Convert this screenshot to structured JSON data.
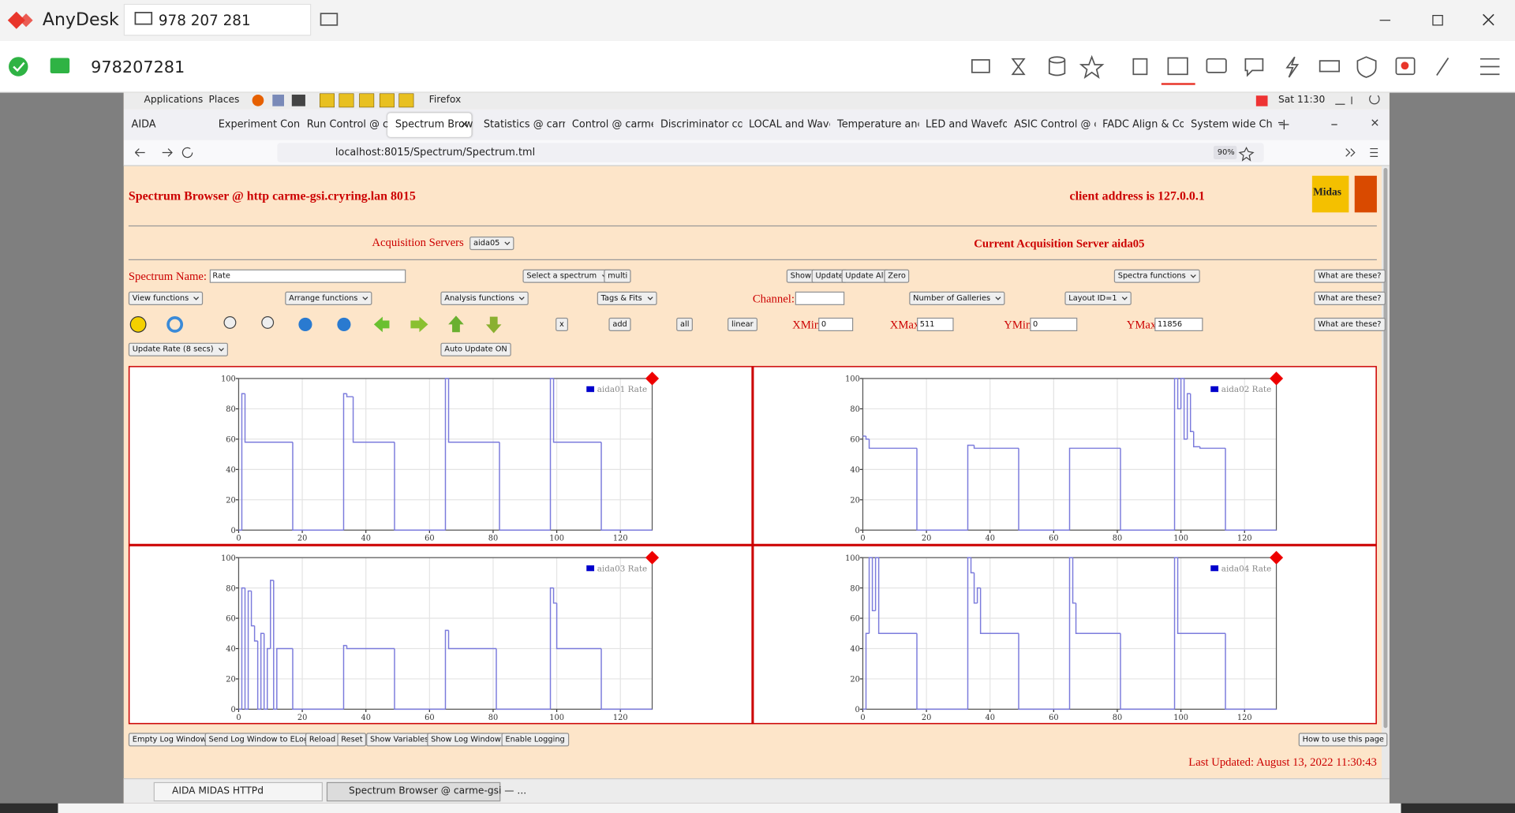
{
  "anydesk": {
    "app_name": "AnyDesk",
    "tab_id": "978 207 281",
    "address": "978207281"
  },
  "desktop_panel": {
    "menus": [
      "Applications",
      "Places"
    ],
    "app": "Firefox",
    "clock": "Sat 11:30"
  },
  "browser": {
    "tabs": [
      "AIDA",
      "Experiment Cont",
      "Run Control @ ca",
      "Spectrum Brow",
      "Statistics @ carm",
      "Control @ carme",
      "Discriminator co",
      "LOCAL and Wave",
      "Temperature and",
      "LED and Wavefor",
      "ASIC Control @ c",
      "FADC Align & Co",
      "System wide Che"
    ],
    "url": "localhost:8015/Spectrum/Spectrum.tml",
    "zoom": "90%"
  },
  "page": {
    "title": "Spectrum Browser @ http carme-gsi.cryring.lan 8015",
    "client": "client address is 127.0.0.1",
    "logo": "Midas",
    "acq_label": "Acquisition Servers",
    "acq_select": "aida05",
    "acq_current": "Current Acquisition Server aida05",
    "spectrum_label": "Spectrum Name:",
    "spectrum_name": "Rate",
    "select_spectrum": "Select a spectrum",
    "multi": "multi",
    "row1_buttons": [
      "Show",
      "Update",
      "Update All",
      "Zero"
    ],
    "spectra_functions": "Spectra functions",
    "help": "What are these?",
    "row2_selects": [
      "View functions",
      "Arrange functions",
      "Analysis functions",
      "Tags & Fits"
    ],
    "channel_label": "Channel:",
    "galleries": "Number of Galleries",
    "layout": "Layout ID=1",
    "row3_buttons": [
      "x",
      "add",
      "all",
      "linear"
    ],
    "limits": [
      {
        "label": "XMin",
        "value": "0"
      },
      {
        "label": "XMax",
        "value": "511"
      },
      {
        "label": "YMin",
        "value": "0"
      },
      {
        "label": "YMax",
        "value": "11856"
      }
    ],
    "update_rate": "Update Rate (8 secs)",
    "auto_update": "Auto Update ON",
    "bottom_buttons": [
      "Empty Log Window",
      "Send Log Window to ELog",
      "Reload",
      "Reset",
      "Show Variables",
      "Show Log Window",
      "Enable Logging"
    ],
    "how_to": "How to use this page",
    "last_updated": "Last Updated: August 13, 2022 11:30:43"
  },
  "plots": [
    {
      "legend": "aida01 Rate",
      "color": "#7b7bdc",
      "legend_color": "#0000cc",
      "xlim": [
        0,
        130
      ],
      "ylim": [
        0,
        100
      ],
      "xticks": [
        0,
        20,
        40,
        60,
        80,
        100,
        120
      ],
      "yticks": [
        0,
        20,
        40,
        60,
        80,
        100
      ],
      "x": [
        0,
        1,
        2,
        17,
        33,
        34,
        36,
        49,
        65,
        66,
        82,
        98,
        99,
        114,
        130
      ],
      "values": [
        0,
        90,
        58,
        0,
        90,
        88,
        58,
        0,
        100,
        58,
        0,
        100,
        58,
        0,
        0
      ]
    },
    {
      "legend": "aida02 Rate",
      "color": "#7b7bdc",
      "legend_color": "#0000cc",
      "xlim": [
        0,
        130
      ],
      "ylim": [
        0,
        100
      ],
      "xticks": [
        0,
        20,
        40,
        60,
        80,
        100,
        120
      ],
      "yticks": [
        0,
        20,
        40,
        60,
        80,
        100
      ],
      "x": [
        0,
        1,
        2,
        17,
        33,
        35,
        49,
        65,
        81,
        98,
        99,
        100,
        101,
        102,
        103,
        104,
        106,
        114,
        130
      ],
      "values": [
        62,
        60,
        54,
        0,
        56,
        54,
        0,
        54,
        0,
        100,
        80,
        100,
        60,
        90,
        65,
        55,
        54,
        0,
        0
      ]
    },
    {
      "legend": "aida03 Rate",
      "color": "#7b7bdc",
      "legend_color": "#0000cc",
      "xlim": [
        0,
        130
      ],
      "ylim": [
        0,
        100
      ],
      "xticks": [
        0,
        20,
        40,
        60,
        80,
        100,
        120
      ],
      "yticks": [
        0,
        20,
        40,
        60,
        80,
        100
      ],
      "x": [
        0,
        1,
        2,
        3,
        4,
        5,
        6,
        7,
        8,
        9,
        10,
        11,
        12,
        17,
        33,
        34,
        49,
        65,
        66,
        81,
        98,
        99,
        100,
        114,
        130
      ],
      "values": [
        0,
        80,
        0,
        78,
        55,
        45,
        0,
        50,
        0,
        40,
        85,
        0,
        40,
        0,
        42,
        40,
        0,
        52,
        40,
        0,
        80,
        70,
        40,
        0,
        0
      ]
    },
    {
      "legend": "aida04 Rate",
      "color": "#7b7bdc",
      "legend_color": "#0000cc",
      "xlim": [
        0,
        130
      ],
      "ylim": [
        0,
        100
      ],
      "xticks": [
        0,
        20,
        40,
        60,
        80,
        100,
        120
      ],
      "yticks": [
        0,
        20,
        40,
        60,
        80,
        100
      ],
      "x": [
        0,
        1,
        2,
        3,
        4,
        5,
        17,
        33,
        34,
        35,
        36,
        37,
        49,
        65,
        66,
        67,
        68,
        81,
        98,
        99,
        114,
        130
      ],
      "values": [
        0,
        50,
        100,
        65,
        100,
        50,
        0,
        100,
        90,
        70,
        80,
        50,
        0,
        100,
        70,
        50,
        50,
        0,
        100,
        50,
        0,
        0
      ]
    }
  ],
  "taskbar": [
    "AIDA MIDAS HTTPd",
    "Spectrum Browser @ carme-gsi — ..."
  ]
}
